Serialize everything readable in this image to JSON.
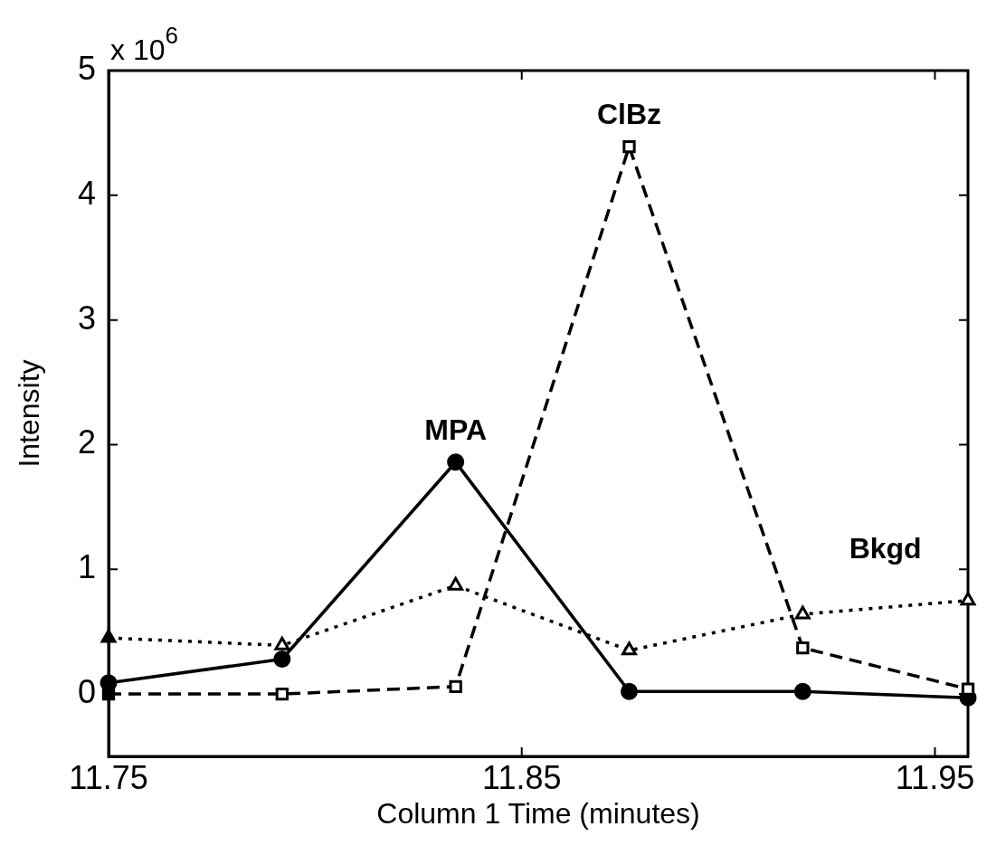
{
  "chart_data": {
    "type": "line",
    "xlabel": "Column 1 Time (minutes)",
    "ylabel": "Intensity",
    "annotations": [
      "x 10$^{6}$"
    ],
    "x": [
      11.75,
      11.792,
      11.834,
      11.876,
      11.918,
      11.958
    ],
    "xlim": [
      11.75,
      11.958
    ],
    "xticks": [
      11.75,
      11.85,
      11.95
    ],
    "ylim": [
      -0.5,
      5
    ],
    "yticks": [
      0,
      1,
      2,
      3,
      4,
      5
    ],
    "grid": false,
    "legend": false,
    "series": [
      {
        "name": "MPA",
        "color": "#000000",
        "marker": "circle",
        "line_style": "solid",
        "values": [
          0.09,
          0.28,
          1.86,
          0.02,
          0.02,
          -0.03
        ]
      },
      {
        "name": "ClBz",
        "color": "#000000",
        "marker": "square",
        "line_style": "dashed",
        "values": [
          0,
          0,
          0.06,
          4.39,
          0.37,
          0.04
        ]
      },
      {
        "name": "Bkgd",
        "color": "#000000",
        "marker": "triangle",
        "line_style": "dotted",
        "values": [
          0.45,
          0.39,
          0.87,
          0.35,
          0.64,
          0.75
        ]
      }
    ]
  }
}
